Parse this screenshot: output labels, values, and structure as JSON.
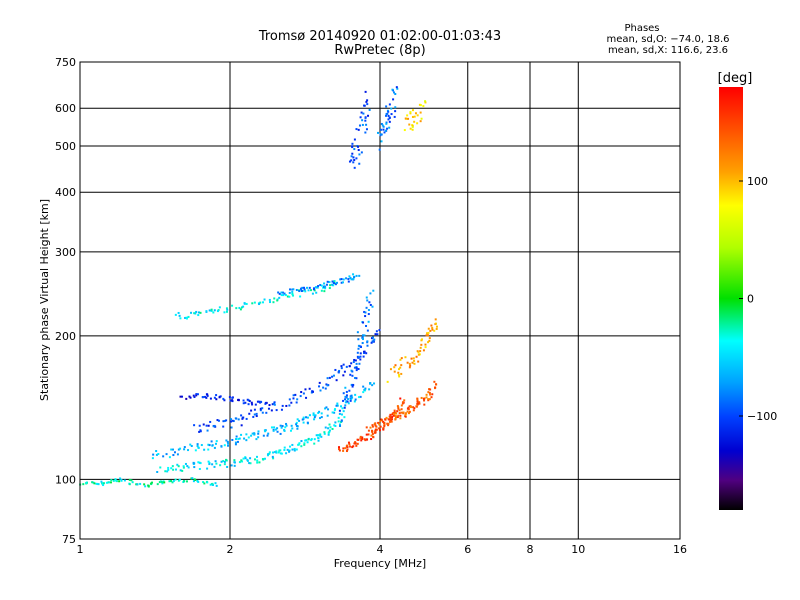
{
  "chart_data": {
    "type": "scatter",
    "title": "Tromsø 20140920 01:02:00-01:03:43",
    "subtitle": "RwPretec (8p)",
    "xlabel": "Frequency [MHz]",
    "ylabel": "Stationary phase Virtual Height [km]",
    "xscale": "log",
    "yscale": "log",
    "xlim": [
      1,
      16
    ],
    "ylim": [
      75,
      750
    ],
    "xticks": [
      1,
      2,
      4,
      6,
      8,
      10,
      16
    ],
    "xtick_labels": [
      "1",
      "2",
      "4",
      "6",
      "8",
      "10",
      "16"
    ],
    "yticks": [
      75,
      100,
      200,
      300,
      400,
      500,
      600,
      750
    ],
    "ytick_labels": [
      "75",
      "100",
      "200",
      "300",
      "400",
      "500",
      "600",
      "750"
    ],
    "grid": true,
    "phases": {
      "title": "Phases",
      "line_o": "mean, sd,O: −74.0, 18.6",
      "line_x": "mean, sd,X: 116.6, 23.6"
    },
    "colorbar": {
      "label": "[deg]",
      "range": [
        -180,
        180
      ],
      "ticks": [
        100,
        0,
        -100
      ],
      "tick_labels": [
        "100",
        "0",
        "−100"
      ]
    },
    "traces": [
      {
        "f": [
          1.0,
          1.1,
          1.2,
          1.35,
          1.5,
          1.7,
          1.9
        ],
        "h": [
          98,
          98,
          100,
          97,
          99,
          100,
          97
        ],
        "phase": -30,
        "spread": 0.008
      },
      {
        "f": [
          1.45,
          1.6,
          1.8,
          2.0,
          2.2,
          2.4,
          2.6,
          2.8,
          3.0,
          3.2,
          3.4
        ],
        "h": [
          104,
          106,
          107,
          108,
          110,
          112,
          115,
          118,
          122,
          128,
          137
        ],
        "phase": -45,
        "spread": 0.02
      },
      {
        "f": [
          1.4,
          1.6,
          1.8,
          2.0,
          2.2,
          2.4,
          2.6,
          2.8,
          3.0,
          3.3,
          3.6,
          3.9
        ],
        "h": [
          112,
          115,
          118,
          120,
          123,
          126,
          128,
          132,
          136,
          142,
          150,
          160
        ],
        "phase": -60,
        "spread": 0.02
      },
      {
        "f": [
          1.7,
          1.9,
          2.1,
          2.3,
          2.6,
          2.9,
          3.2,
          3.5,
          3.8,
          4.0
        ],
        "h": [
          128,
          130,
          133,
          138,
          145,
          153,
          162,
          175,
          190,
          205
        ],
        "phase": -100,
        "spread": 0.025
      },
      {
        "f": [
          1.6,
          1.8,
          2.0,
          2.2,
          2.4
        ],
        "h": [
          148,
          150,
          147,
          145,
          143
        ],
        "phase": -115,
        "spread": 0.012
      },
      {
        "f": [
          1.55,
          1.75,
          2.0,
          2.3,
          2.6,
          3.0,
          3.3
        ],
        "h": [
          220,
          222,
          228,
          235,
          242,
          250,
          258
        ],
        "phase": -40,
        "spread": 0.015
      },
      {
        "f": [
          2.5,
          2.8,
          3.1,
          3.4,
          3.6
        ],
        "h": [
          245,
          250,
          255,
          262,
          268
        ],
        "phase": -75,
        "spread": 0.012
      },
      {
        "f": [
          3.35,
          3.45,
          3.55,
          3.65,
          3.75,
          3.85
        ],
        "h": [
          135,
          150,
          170,
          190,
          215,
          245
        ],
        "phase": -85,
        "spread": 0.06
      },
      {
        "f": [
          3.3,
          3.5,
          3.7,
          3.9,
          4.1,
          4.3,
          4.5
        ],
        "h": [
          115,
          118,
          121,
          125,
          130,
          138,
          148
        ],
        "phase": 150,
        "spread": 0.015
      },
      {
        "f": [
          3.8,
          4.0,
          4.2,
          4.4,
          4.6,
          4.8,
          5.0,
          5.2
        ],
        "h": [
          128,
          131,
          134,
          137,
          140,
          145,
          150,
          160
        ],
        "phase": 140,
        "spread": 0.02
      },
      {
        "f": [
          4.2,
          4.5,
          4.8,
          5.0,
          5.2
        ],
        "h": [
          165,
          175,
          185,
          200,
          215
        ],
        "phase": 110,
        "spread": 0.04
      },
      {
        "f": [
          3.5,
          3.6,
          3.7,
          3.8
        ],
        "h": [
          460,
          500,
          560,
          610
        ],
        "phase": -95,
        "spread": 0.08
      },
      {
        "f": [
          4.0,
          4.1,
          4.2,
          4.3
        ],
        "h": [
          520,
          560,
          600,
          640
        ],
        "phase": -85,
        "spread": 0.06
      },
      {
        "f": [
          4.5,
          4.7,
          4.9
        ],
        "h": [
          545,
          570,
          600
        ],
        "phase": 90,
        "spread": 0.05
      }
    ]
  }
}
